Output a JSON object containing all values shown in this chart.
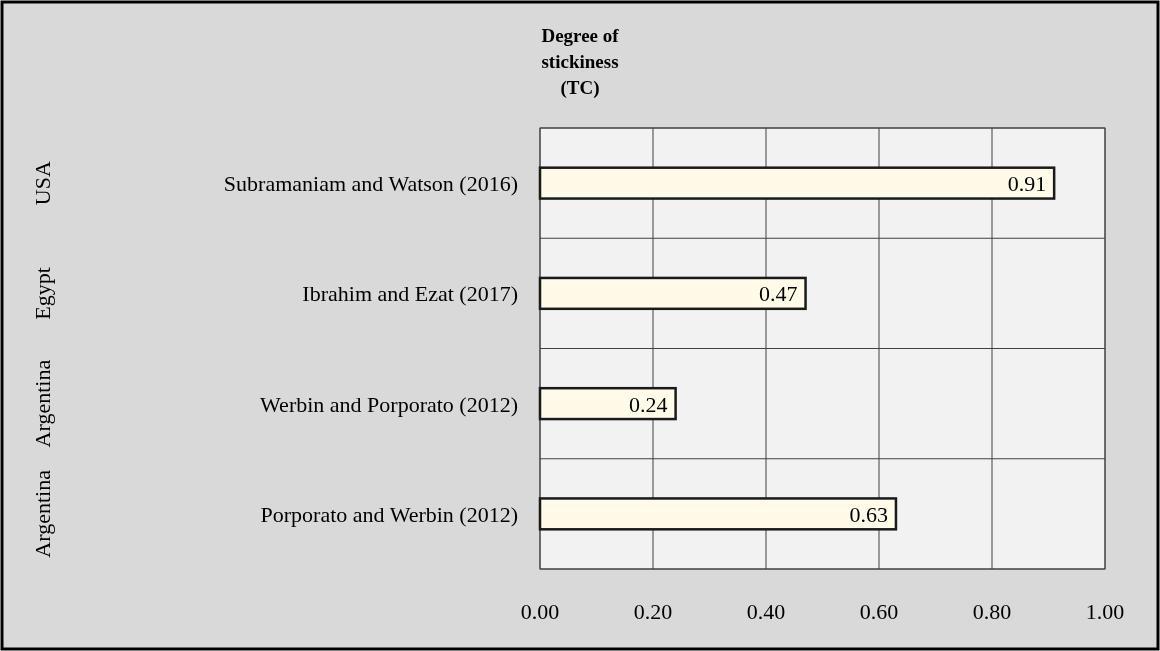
{
  "chart_data": {
    "type": "bar",
    "orientation": "horizontal",
    "title": "Degree of stickiness (TC)",
    "categories": [
      "Subramaniam and Watson (2016)",
      "Ibrahim and Ezat (2017)",
      "Werbin and Porporato (2012)",
      "Porporato and Werbin (2012)"
    ],
    "values": [
      0.91,
      0.47,
      0.24,
      0.63
    ],
    "color": "#fffbe8",
    "xlim": [
      0,
      1
    ],
    "xticks": [
      {
        "value": 0,
        "label": "0.00"
      },
      {
        "value": 0.2,
        "label": "0.20"
      },
      {
        "value": 0.4,
        "label": "0.40"
      },
      {
        "value": 0.6,
        "label": "0.60"
      },
      {
        "value": 0.8,
        "label": "0.80"
      },
      {
        "value": 1,
        "label": "1.00"
      }
    ],
    "annotations": [
      "USA",
      "Egypt",
      "Argentina",
      "Argentina"
    ],
    "grid": true,
    "data_labels": true
  }
}
